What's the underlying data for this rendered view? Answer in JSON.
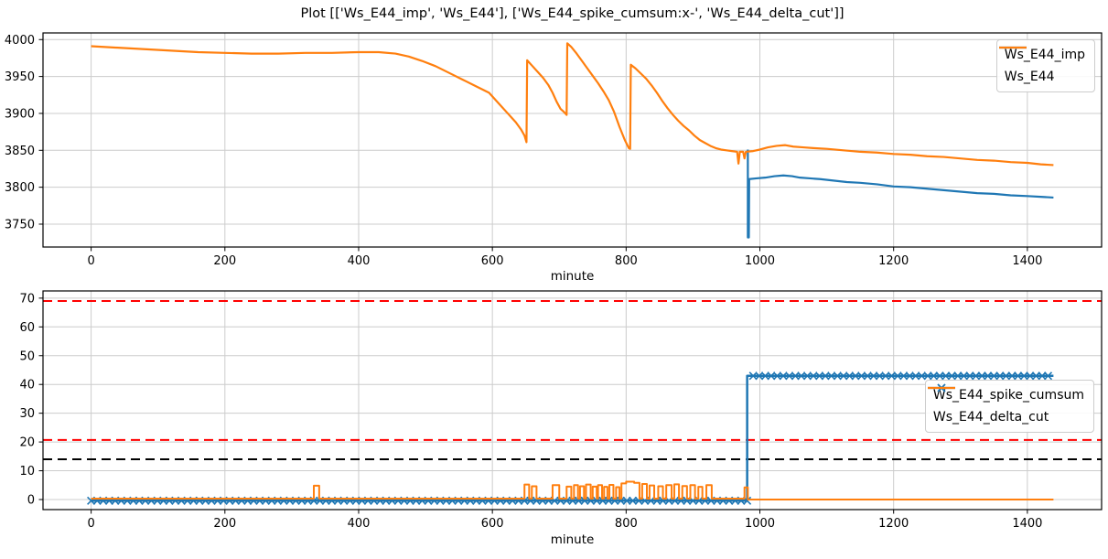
{
  "title": "Plot [['Ws_E44_imp', 'Ws_E44'], ['Ws_E44_spike_cumsum:x-', 'Ws_E44_delta_cut']]",
  "colors": {
    "blue": "#1f77b4",
    "orange": "#ff7f0e",
    "red": "#ff0000",
    "black": "#000000",
    "grid": "#cccccc",
    "spine": "#000000"
  },
  "chart_data": [
    {
      "type": "line",
      "xlabel": "minute",
      "xlim": [
        -72,
        1511
      ],
      "ylim": [
        3719,
        4009
      ],
      "xticks": [
        0,
        200,
        400,
        600,
        800,
        1000,
        1200,
        1400
      ],
      "yticks": [
        3750,
        3800,
        3850,
        3900,
        3950,
        4000
      ],
      "grid": true,
      "legend": {
        "loc": "upper-right",
        "entries": [
          {
            "label": "Ws_E44_imp",
            "color": "#1f77b4",
            "marker": "none"
          },
          {
            "label": "Ws_E44",
            "color": "#ff7f0e",
            "marker": "none"
          }
        ]
      },
      "series": [
        {
          "name": "Ws_E44_imp",
          "color": "#1f77b4",
          "width": 2.2,
          "marker": "none",
          "points": [
            [
              982,
              3851
            ],
            [
              982,
              3732
            ],
            [
              983.5,
              3732
            ],
            [
              984,
              3811
            ],
            [
              995,
              3812
            ],
            [
              1008,
              3813
            ],
            [
              1022,
              3815
            ],
            [
              1035,
              3816
            ],
            [
              1048,
              3815
            ],
            [
              1060,
              3813
            ],
            [
              1075,
              3812
            ],
            [
              1090,
              3811
            ],
            [
              1110,
              3809
            ],
            [
              1130,
              3807
            ],
            [
              1150,
              3806
            ],
            [
              1175,
              3804
            ],
            [
              1200,
              3801
            ],
            [
              1225,
              3800
            ],
            [
              1250,
              3798
            ],
            [
              1275,
              3796
            ],
            [
              1300,
              3794
            ],
            [
              1325,
              3792
            ],
            [
              1350,
              3791
            ],
            [
              1375,
              3789
            ],
            [
              1400,
              3788
            ],
            [
              1420,
              3787
            ],
            [
              1439,
              3786
            ]
          ]
        },
        {
          "name": "Ws_E44",
          "color": "#ff7f0e",
          "width": 2.2,
          "marker": "none",
          "points": [
            [
              0,
              3991
            ],
            [
              40,
              3989
            ],
            [
              80,
              3987
            ],
            [
              120,
              3985
            ],
            [
              160,
              3983
            ],
            [
              200,
              3982
            ],
            [
              240,
              3981
            ],
            [
              280,
              3981
            ],
            [
              320,
              3982
            ],
            [
              360,
              3982
            ],
            [
              400,
              3983
            ],
            [
              430,
              3983
            ],
            [
              455,
              3981
            ],
            [
              475,
              3977
            ],
            [
              495,
              3971
            ],
            [
              515,
              3964
            ],
            [
              535,
              3955
            ],
            [
              555,
              3946
            ],
            [
              575,
              3937
            ],
            [
              595,
              3928
            ],
            [
              610,
              3913
            ],
            [
              625,
              3898
            ],
            [
              635,
              3888
            ],
            [
              643,
              3878
            ],
            [
              648,
              3870
            ],
            [
              651,
              3861
            ],
            [
              652,
              3972
            ],
            [
              660,
              3964
            ],
            [
              668,
              3956
            ],
            [
              676,
              3948
            ],
            [
              684,
              3938
            ],
            [
              690,
              3928
            ],
            [
              696,
              3916
            ],
            [
              702,
              3906
            ],
            [
              707,
              3902
            ],
            [
              711,
              3898
            ],
            [
              712,
              3995
            ],
            [
              718,
              3990
            ],
            [
              726,
              3981
            ],
            [
              734,
              3971
            ],
            [
              742,
              3961
            ],
            [
              750,
              3951
            ],
            [
              758,
              3941
            ],
            [
              766,
              3930
            ],
            [
              774,
              3918
            ],
            [
              782,
              3902
            ],
            [
              790,
              3882
            ],
            [
              798,
              3864
            ],
            [
              804,
              3853
            ],
            [
              806,
              3852
            ],
            [
              807,
              3966
            ],
            [
              814,
              3961
            ],
            [
              822,
              3954
            ],
            [
              830,
              3947
            ],
            [
              838,
              3938
            ],
            [
              846,
              3928
            ],
            [
              854,
              3917
            ],
            [
              862,
              3907
            ],
            [
              870,
              3898
            ],
            [
              878,
              3890
            ],
            [
              886,
              3883
            ],
            [
              894,
              3877
            ],
            [
              902,
              3870
            ],
            [
              910,
              3864
            ],
            [
              918,
              3860
            ],
            [
              926,
              3856
            ],
            [
              934,
              3853
            ],
            [
              942,
              3851
            ],
            [
              950,
              3850
            ],
            [
              958,
              3849
            ],
            [
              966,
              3848
            ],
            [
              968,
              3832
            ],
            [
              970,
              3848
            ],
            [
              975,
              3848
            ],
            [
              977,
              3839
            ],
            [
              979,
              3848
            ],
            [
              990,
              3849
            ],
            [
              1000,
              3851
            ],
            [
              1012,
              3854
            ],
            [
              1025,
              3856
            ],
            [
              1038,
              3857
            ],
            [
              1050,
              3855
            ],
            [
              1065,
              3854
            ],
            [
              1080,
              3853
            ],
            [
              1100,
              3852
            ],
            [
              1125,
              3850
            ],
            [
              1150,
              3848
            ],
            [
              1175,
              3847
            ],
            [
              1200,
              3845
            ],
            [
              1225,
              3844
            ],
            [
              1250,
              3842
            ],
            [
              1275,
              3841
            ],
            [
              1300,
              3839
            ],
            [
              1325,
              3837
            ],
            [
              1350,
              3836
            ],
            [
              1375,
              3834
            ],
            [
              1400,
              3833
            ],
            [
              1420,
              3831
            ],
            [
              1439,
              3830
            ]
          ]
        }
      ]
    },
    {
      "type": "line",
      "xlabel": "minute",
      "xlim": [
        -72,
        1511
      ],
      "ylim": [
        -3.5,
        72.5
      ],
      "xticks": [
        0,
        200,
        400,
        600,
        800,
        1000,
        1200,
        1400
      ],
      "yticks": [
        0,
        10,
        20,
        30,
        40,
        50,
        60,
        70
      ],
      "grid": true,
      "hlines": [
        {
          "y": 69,
          "color": "#ff0000",
          "dash": true
        },
        {
          "y": 20.7,
          "color": "#ff0000",
          "dash": true
        },
        {
          "y": 14,
          "color": "#000000",
          "dash": true
        }
      ],
      "legend": {
        "loc": "center-right",
        "entries": [
          {
            "label": "Ws_E44_spike_cumsum",
            "color": "#1f77b4",
            "marker": "x"
          },
          {
            "label": "Ws_E44_delta_cut",
            "color": "#ff7f0e",
            "marker": "none"
          }
        ]
      },
      "series": [
        {
          "name": "Ws_E44_spike_cumsum",
          "color": "#1f77b4",
          "width": 2.5,
          "marker": "x",
          "marker_every": 9,
          "marker_size": 4,
          "points": [
            [
              0,
              -0.4
            ],
            [
              981,
              -0.4
            ],
            [
              981,
              43
            ],
            [
              1439,
              43
            ]
          ]
        },
        {
          "name": "Ws_E44_delta_cut",
          "color": "#ff7f0e",
          "width": 2,
          "marker": "none",
          "points": [
            [
              0,
              0.3
            ],
            [
              333,
              0.3
            ],
            [
              333,
              4.8
            ],
            [
              341,
              4.8
            ],
            [
              341,
              0.3
            ],
            [
              648,
              0.3
            ],
            [
              648,
              5.2
            ],
            [
              655,
              5.2
            ],
            [
              655,
              0.3
            ],
            [
              659,
              0.3
            ],
            [
              659,
              4.6
            ],
            [
              666,
              4.6
            ],
            [
              666,
              0.3
            ],
            [
              690,
              0.3
            ],
            [
              690,
              5
            ],
            [
              700,
              5
            ],
            [
              700,
              0.3
            ],
            [
              711,
              0.3
            ],
            [
              711,
              4.5
            ],
            [
              718,
              4.5
            ],
            [
              718,
              0.3
            ],
            [
              722,
              0.3
            ],
            [
              722,
              5
            ],
            [
              728,
              5
            ],
            [
              728,
              0.3
            ],
            [
              731,
              0.3
            ],
            [
              731,
              4.6
            ],
            [
              737,
              4.6
            ],
            [
              737,
              0.3
            ],
            [
              740,
              0.3
            ],
            [
              740,
              5.2
            ],
            [
              747,
              5.2
            ],
            [
              747,
              0.3
            ],
            [
              750,
              0.3
            ],
            [
              750,
              4.5
            ],
            [
              756,
              4.5
            ],
            [
              756,
              0.3
            ],
            [
              758,
              0.3
            ],
            [
              758,
              5
            ],
            [
              764,
              5
            ],
            [
              764,
              0.3
            ],
            [
              767,
              0.3
            ],
            [
              767,
              4.4
            ],
            [
              772,
              4.4
            ],
            [
              772,
              0.3
            ],
            [
              775,
              0.3
            ],
            [
              775,
              5.1
            ],
            [
              781,
              5.1
            ],
            [
              781,
              0.3
            ],
            [
              785,
              0.3
            ],
            [
              785,
              4.3
            ],
            [
              790,
              4.3
            ],
            [
              790,
              0.3
            ],
            [
              793,
              0.3
            ],
            [
              793,
              5.6
            ],
            [
              800,
              5.6
            ],
            [
              800,
              6.2
            ],
            [
              812,
              6.2
            ],
            [
              812,
              5.8
            ],
            [
              820,
              5.8
            ],
            [
              820,
              0.3
            ],
            [
              824,
              0.3
            ],
            [
              824,
              5.4
            ],
            [
              831,
              5.4
            ],
            [
              831,
              0.3
            ],
            [
              835,
              0.3
            ],
            [
              835,
              4.9
            ],
            [
              842,
              4.9
            ],
            [
              842,
              0.3
            ],
            [
              848,
              0.3
            ],
            [
              848,
              4.6
            ],
            [
              855,
              4.6
            ],
            [
              855,
              0.3
            ],
            [
              860,
              0.3
            ],
            [
              860,
              5
            ],
            [
              868,
              5
            ],
            [
              868,
              0.3
            ],
            [
              872,
              0.3
            ],
            [
              872,
              5.3
            ],
            [
              879,
              5.3
            ],
            [
              879,
              0.3
            ],
            [
              884,
              0.3
            ],
            [
              884,
              4.7
            ],
            [
              891,
              4.7
            ],
            [
              891,
              0.3
            ],
            [
              896,
              0.3
            ],
            [
              896,
              5
            ],
            [
              903,
              5
            ],
            [
              903,
              0.3
            ],
            [
              908,
              0.3
            ],
            [
              908,
              4.4
            ],
            [
              914,
              4.4
            ],
            [
              914,
              0.3
            ],
            [
              920,
              0.3
            ],
            [
              920,
              5
            ],
            [
              928,
              5
            ],
            [
              928,
              0.3
            ],
            [
              977,
              0.3
            ],
            [
              977,
              4.2
            ],
            [
              982,
              4.2
            ],
            [
              982,
              0
            ],
            [
              1439,
              0
            ]
          ]
        }
      ]
    }
  ]
}
